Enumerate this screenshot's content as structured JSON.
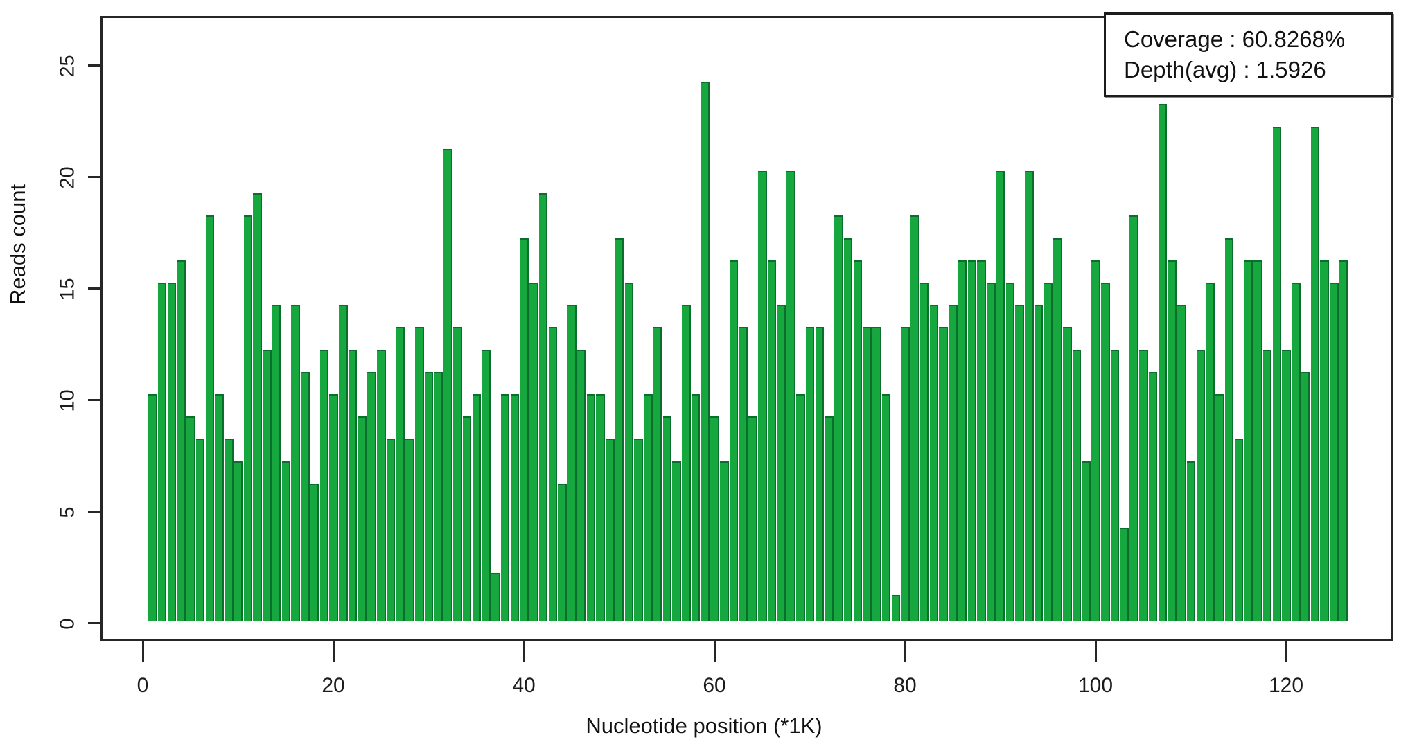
{
  "legend": {
    "line1": "Coverage : 60.8268%",
    "line2": "Depth(avg) : 1.5926"
  },
  "chart_data": {
    "type": "bar",
    "title": "",
    "xlabel": "Nucleotide position (*1K)",
    "ylabel": "Reads count",
    "legend_position": "top-right",
    "grid": false,
    "bar_color": "#16a83e",
    "bar_edge_color": "#0c6e2c",
    "axis_color": "#262626",
    "x_ticks": [
      0,
      20,
      40,
      60,
      80,
      100,
      120
    ],
    "y_ticks": [
      0,
      5,
      10,
      15,
      20,
      25
    ],
    "ylim": [
      0,
      26
    ],
    "xlim": [
      -4.2,
      131.6
    ],
    "bin_width_k": 1,
    "x_first_bin_center": 1,
    "values": [
      10,
      15,
      15,
      16,
      9,
      8,
      18,
      10,
      8,
      7,
      18,
      19,
      12,
      14,
      7,
      14,
      11,
      6,
      12,
      10,
      14,
      12,
      9,
      11,
      12,
      8,
      13,
      8,
      13,
      11,
      11,
      21,
      13,
      9,
      10,
      12,
      2,
      10,
      10,
      17,
      15,
      19,
      13,
      6,
      14,
      12,
      10,
      10,
      8,
      17,
      15,
      8,
      10,
      13,
      9,
      7,
      14,
      10,
      24,
      9,
      7,
      16,
      13,
      9,
      20,
      16,
      14,
      20,
      10,
      13,
      13,
      9,
      18,
      17,
      16,
      13,
      13,
      10,
      1,
      13,
      18,
      15,
      14,
      13,
      14,
      16,
      16,
      16,
      15,
      20,
      15,
      14,
      20,
      14,
      15,
      17,
      13,
      12,
      7,
      16,
      15,
      12,
      4,
      18,
      12,
      11,
      23,
      16,
      14,
      7,
      12,
      15,
      10,
      17,
      8,
      16,
      16,
      12,
      22,
      12,
      15,
      11,
      22,
      16,
      15,
      16
    ]
  }
}
